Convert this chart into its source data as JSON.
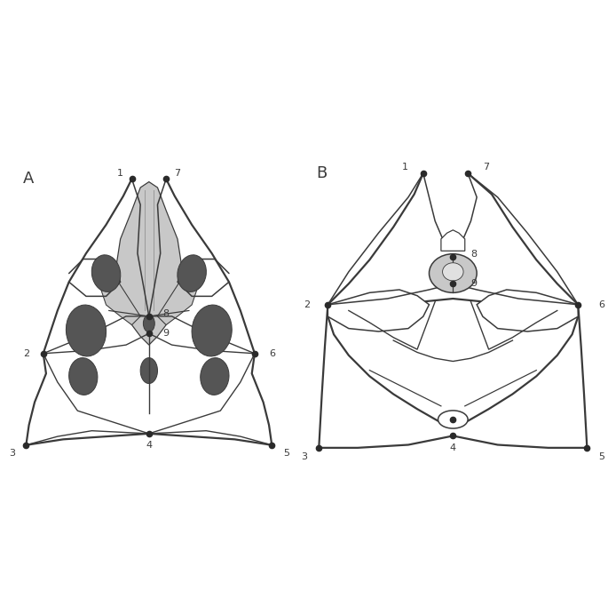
{
  "figure_width": 6.85,
  "figure_height": 6.92,
  "background_color": "#ffffff",
  "line_color": "#3a3a3a",
  "dark_gray": "#555555",
  "light_gray": "#c8c8c8",
  "point_color": "#2a2a2a",
  "line_width": 1.1,
  "thick_line": 1.6,
  "point_size": 4.5,
  "label_fontsize": 9,
  "panel_fontsize": 13
}
